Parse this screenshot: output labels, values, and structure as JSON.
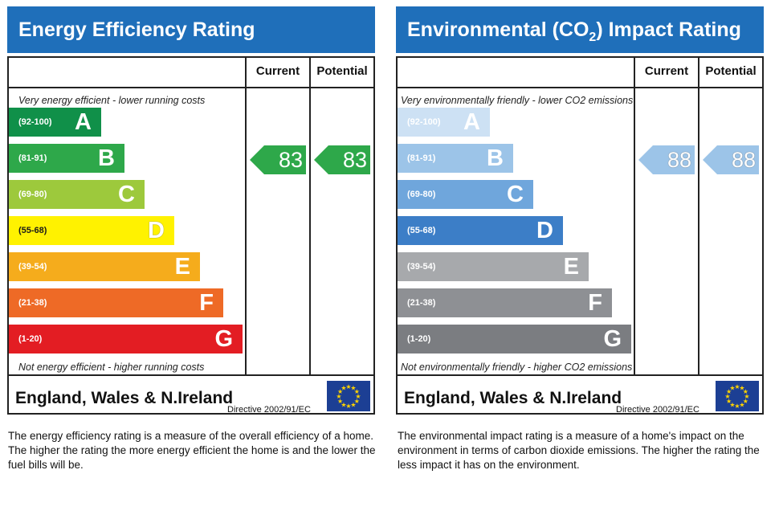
{
  "chart_data": [
    {
      "type": "bar",
      "title": "Energy Efficiency Rating",
      "column_headers": [
        "Current",
        "Potential"
      ],
      "top_note": "Very energy efficient - lower running costs",
      "bottom_note": "Not energy efficient - higher running costs",
      "bands": [
        {
          "range": "(92-100)",
          "letter": "A",
          "color": "#109049"
        },
        {
          "range": "(81-91)",
          "letter": "B",
          "color": "#2ea84a"
        },
        {
          "range": "(69-80)",
          "letter": "C",
          "color": "#9dc93c"
        },
        {
          "range": "(55-68)",
          "letter": "D",
          "color": "#fff200"
        },
        {
          "range": "(39-54)",
          "letter": "E",
          "color": "#f5ac1c"
        },
        {
          "range": "(21-38)",
          "letter": "F",
          "color": "#ee6a26"
        },
        {
          "range": "(1-20)",
          "letter": "G",
          "color": "#e31d23"
        }
      ],
      "current": {
        "value": "83",
        "band": "B",
        "color": "#2ea84a"
      },
      "potential": {
        "value": "83",
        "band": "B",
        "color": "#2ea84a"
      },
      "footer_title": "England, Wales & N.Ireland",
      "directive": "Directive 2002/91/EC",
      "description": "The energy efficiency rating is a measure of the overall efficiency of a home. The higher the rating the more energy efficient the home is and the lower the fuel bills will be."
    },
    {
      "type": "bar",
      "title": "Environmental (CO",
      "title_sub": "2",
      "title_end": ") Impact Rating",
      "column_headers": [
        "Current",
        "Potential"
      ],
      "top_note": "Very environmentally friendly - lower CO2 emissions",
      "bottom_note": "Not environmentally friendly - higher CO2 emissions",
      "bands": [
        {
          "range": "(92-100)",
          "letter": "A",
          "color": "#cde1f4"
        },
        {
          "range": "(81-91)",
          "letter": "B",
          "color": "#9cc4e8"
        },
        {
          "range": "(69-80)",
          "letter": "C",
          "color": "#6fa6dc"
        },
        {
          "range": "(55-68)",
          "letter": "D",
          "color": "#3c7ec7"
        },
        {
          "range": "(39-54)",
          "letter": "E",
          "color": "#a7a9ac"
        },
        {
          "range": "(21-38)",
          "letter": "F",
          "color": "#8e9094"
        },
        {
          "range": "(1-20)",
          "letter": "G",
          "color": "#7b7d81"
        }
      ],
      "current": {
        "value": "88",
        "band": "B",
        "color": "#9cc4e8"
      },
      "potential": {
        "value": "88",
        "band": "B",
        "color": "#9cc4e8"
      },
      "footer_title": "England, Wales & N.Ireland",
      "directive": "Directive 2002/91/EC",
      "description": "The environmental impact rating is a measure of a home's impact on the environment in terms of carbon dioxide emissions. The higher the rating the less impact it has on the environment."
    }
  ]
}
